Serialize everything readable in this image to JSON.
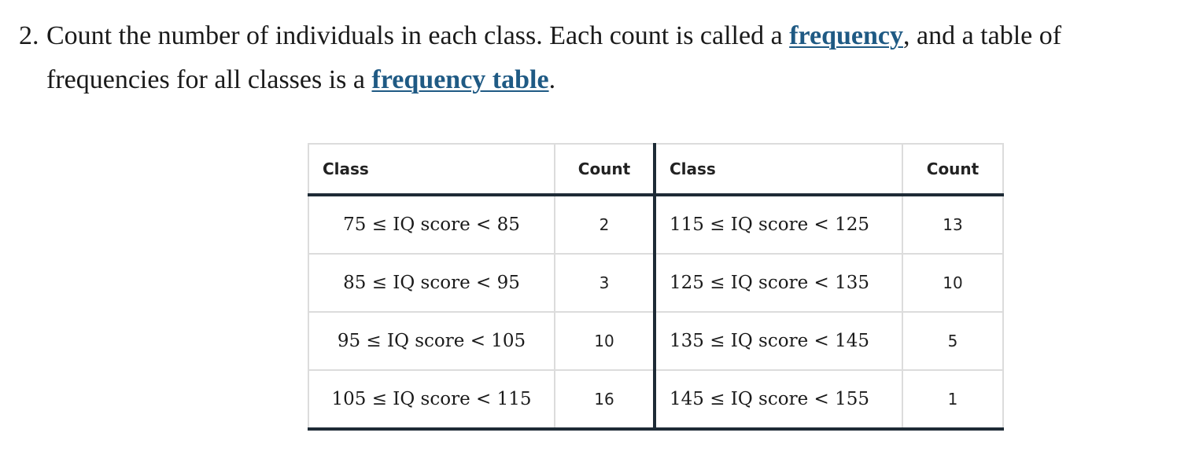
{
  "step": {
    "number": "2.",
    "text_1": "Count the number of individuals in each class. Each count is called a ",
    "link_1": "frequency",
    "text_2": ", and a table of frequencies for all classes is a ",
    "link_2": "frequency table",
    "text_3": "."
  },
  "table": {
    "headers": [
      "Class",
      "Count",
      "Class",
      "Count"
    ],
    "rows": [
      {
        "class_left": "75 ≤ IQ score < 85",
        "count_left": "2",
        "class_right": "115 ≤ IQ score < 125",
        "count_right": "13"
      },
      {
        "class_left": "85 ≤ IQ score < 95",
        "count_left": "3",
        "class_right": "125 ≤ IQ score < 135",
        "count_right": "10"
      },
      {
        "class_left": "95 ≤ IQ score < 105",
        "count_left": "10",
        "class_right": "135 ≤ IQ score < 145",
        "count_right": "5"
      },
      {
        "class_left": "105 ≤ IQ score < 115",
        "count_left": "16",
        "class_right": "145 ≤ IQ score < 155",
        "count_right": "1"
      }
    ]
  },
  "colors": {
    "link": "#1f5a84",
    "table_rule": "#1e2b36",
    "grid": "#dcdcdc"
  }
}
